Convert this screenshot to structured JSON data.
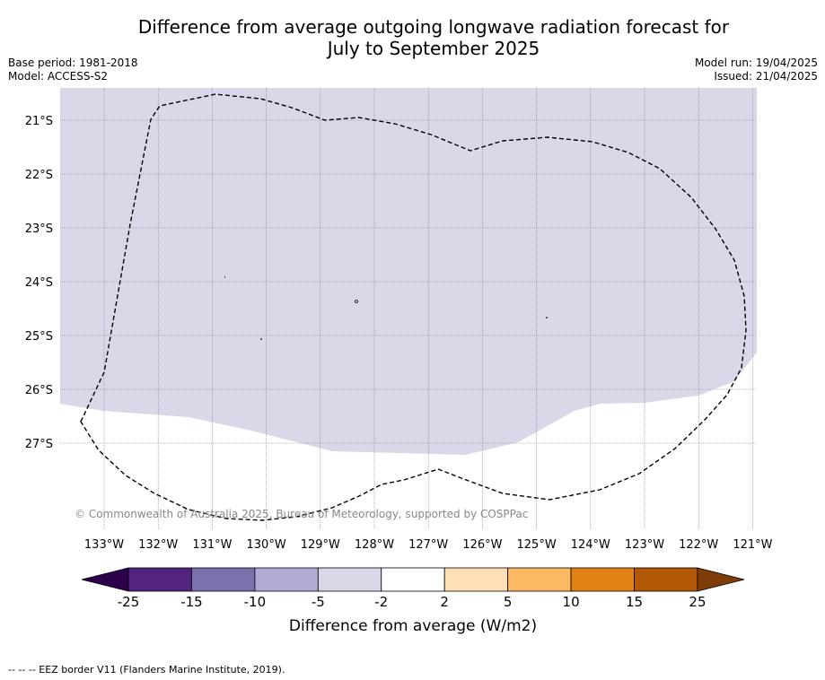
{
  "title": {
    "line1": "Difference from average outgoing longwave radiation forecast for",
    "line2": "July to September 2025"
  },
  "meta_left": {
    "base_period": "Base period: 1981-2018",
    "model": "Model: ACCESS-S2"
  },
  "meta_right": {
    "model_run": "Model run: 19/04/2025",
    "issued": "Issued: 21/04/2025"
  },
  "map": {
    "lon_labels": [
      "133°W",
      "132°W",
      "131°W",
      "130°W",
      "129°W",
      "128°W",
      "127°W",
      "126°W",
      "125°W",
      "124°W",
      "123°W",
      "122°W",
      "121°W"
    ],
    "lat_labels": [
      "21°S",
      "22°S",
      "23°S",
      "24°S",
      "25°S",
      "26°S",
      "27°S"
    ],
    "field_color": "#d8d8e9",
    "copyright": "© Commonwealth of Australia 2025, Bureau of Meteorology, supported by COSPPac"
  },
  "colorbar": {
    "colors": [
      "#52247f",
      "#7c70ad",
      "#b1aad2",
      "#d8d8e9",
      "#ffffff",
      "#fee0b6",
      "#fdb863",
      "#e08214",
      "#b35806"
    ],
    "under_color": "#2d004b",
    "over_color": "#7f3b08",
    "tick_labels": [
      "-25",
      "-15",
      "-10",
      "-5",
      "-2",
      "2",
      "5",
      "10",
      "15",
      "25"
    ],
    "label": "Difference from average (W/m2)"
  },
  "footer": "-- -- -- EEZ border V11 (Flanders Marine Institute, 2019)."
}
